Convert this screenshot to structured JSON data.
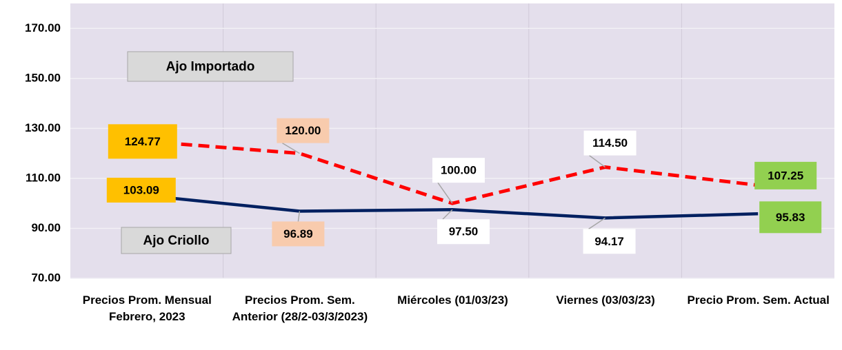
{
  "chart_data": {
    "type": "line",
    "categories": [
      "Precios Prom. Mensual Febrero, 2023",
      "Precios Prom. Sem. Anterior (28/2-03/3/2023)",
      "Miércoles  (01/03/23)",
      "Viernes  (03/03/23)",
      "Precio Prom. Sem. Actual"
    ],
    "series": [
      {
        "name": "Ajo Importado",
        "color": "#ff0000",
        "dash": true,
        "values": [
          124.77,
          120,
          100,
          114.5,
          107.25
        ],
        "value_labels": [
          "124.77",
          "120.00",
          "100.00",
          "114.50",
          "107.25"
        ],
        "label_colors": [
          "#ffc000",
          "#f8cbad",
          "#ffffff",
          "#ffffff",
          "#92d050"
        ]
      },
      {
        "name": "Ajo Criollo",
        "color": "#002060",
        "dash": false,
        "values": [
          103.09,
          96.89,
          97.5,
          94.17,
          95.83
        ],
        "value_labels": [
          "103.09",
          "96.89",
          "97.50",
          "94.17",
          "95.83"
        ],
        "label_colors": [
          "#ffc000",
          "#f8cbad",
          "#ffffff",
          "#ffffff",
          "#92d050"
        ]
      }
    ],
    "ylim": [
      70,
      180
    ],
    "yticks": [
      {
        "value": 70,
        "label": "70.00"
      },
      {
        "value": 90,
        "label": "90.00"
      },
      {
        "value": 110,
        "label": "110.00"
      },
      {
        "value": 130,
        "label": "130.00"
      },
      {
        "value": 150,
        "label": "150.00"
      },
      {
        "value": 170,
        "label": "170.00"
      }
    ],
    "grid": true
  }
}
